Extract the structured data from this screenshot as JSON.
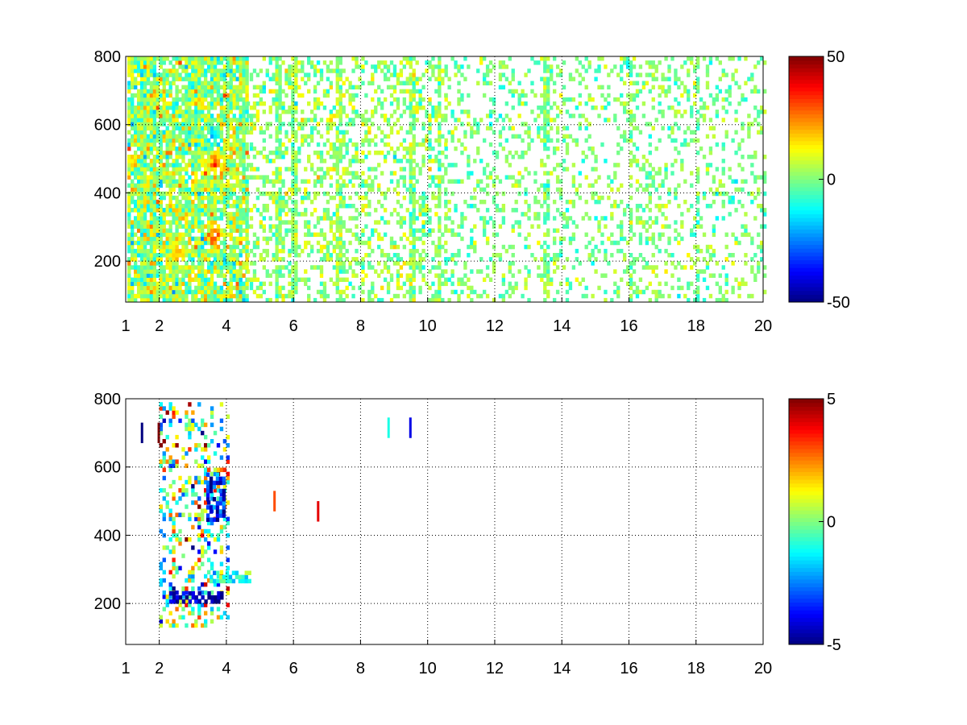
{
  "chart_data": [
    {
      "type": "heatmap",
      "title": "",
      "xlabel": "",
      "ylabel": "",
      "xlim": [
        1,
        20
      ],
      "ylim": [
        80,
        800
      ],
      "grid": true,
      "grid_style": "dotted",
      "x_ticks": [
        1,
        2,
        4,
        6,
        8,
        10,
        12,
        14,
        16,
        18,
        20
      ],
      "x_tick_labels": [
        "1",
        "2",
        "4",
        "6",
        "8",
        "10",
        "12",
        "14",
        "16",
        "18",
        "20"
      ],
      "y_ticks": [
        200,
        400,
        600,
        800
      ],
      "y_tick_labels": [
        "200",
        "400",
        "600",
        "800"
      ],
      "colormap": "jet",
      "clim": [
        -50,
        50
      ],
      "colorbar_ticks": [
        50,
        0,
        -50
      ],
      "colorbar_tick_labels": [
        "50",
        "0",
        "-50"
      ],
      "description_of_values": "sparse scattered values mostly near 0 (green/yellow/cyan); dense activity for x between 1 and 4.5; hot spots near (3.6,270), (3.6,480), (2.5,220); near-vertical streaks at x≈1.5, 5.5, 6, 7.3, 9.5, 10.3, 13.5, 16, 18",
      "clusters": [
        {
          "x": [
            1.05,
            4.6
          ],
          "y": [
            80,
            800
          ],
          "density": 0.85,
          "mean": 3,
          "spread": 14
        },
        {
          "x": [
            4.6,
            10.5
          ],
          "y": [
            80,
            800
          ],
          "density": 0.35,
          "mean": 2,
          "spread": 9
        },
        {
          "x": [
            10.5,
            20
          ],
          "y": [
            80,
            800
          ],
          "density": 0.22,
          "mean": 0,
          "spread": 8
        }
      ],
      "hotspots": [
        {
          "x": 3.6,
          "y": 270,
          "value": 32
        },
        {
          "x": 3.6,
          "y": 480,
          "value": 30
        },
        {
          "x": 2.5,
          "y": 220,
          "value": 22
        },
        {
          "x": 3.5,
          "y": 560,
          "value": -20
        }
      ],
      "streaks": [
        1.5,
        5.5,
        6.0,
        7.3,
        9.5,
        10.3,
        13.5,
        16.0,
        18.0
      ]
    },
    {
      "type": "heatmap",
      "title": "",
      "xlabel": "",
      "ylabel": "",
      "xlim": [
        1,
        20
      ],
      "ylim": [
        80,
        800
      ],
      "grid": true,
      "grid_style": "dotted",
      "x_ticks": [
        1,
        2,
        4,
        6,
        8,
        10,
        12,
        14,
        16,
        18,
        20
      ],
      "x_tick_labels": [
        "1",
        "2",
        "4",
        "6",
        "8",
        "10",
        "12",
        "14",
        "16",
        "18",
        "20"
      ],
      "y_ticks": [
        200,
        400,
        600,
        800
      ],
      "y_tick_labels": [
        "200",
        "400",
        "600",
        "800"
      ],
      "colormap": "jet",
      "clim": [
        -5,
        5
      ],
      "colorbar_ticks": [
        5,
        0,
        -5
      ],
      "colorbar_tick_labels": [
        "5",
        "0",
        "-5"
      ],
      "description_of_values": "very sparse; almost all non-empty cells lie between x=1.5 and x=4.7; strong negative (blue) band near y=210-230 and y=480-560 at x≈3.5-3.9; few isolated points at x≈5.4, 6.7, 9.5",
      "clusters": [
        {
          "x": [
            2.0,
            4.0
          ],
          "y": [
            130,
            780
          ],
          "density": 0.3,
          "mean": 0,
          "spread": 3
        },
        {
          "x": [
            2.2,
            3.9
          ],
          "y": [
            200,
            235
          ],
          "density": 0.7,
          "mean": -4.5,
          "spread": 1
        },
        {
          "x": [
            3.4,
            3.95
          ],
          "y": [
            440,
            580
          ],
          "density": 0.6,
          "mean": -3.5,
          "spread": 1.5
        },
        {
          "x": [
            3.5,
            4.7
          ],
          "y": [
            260,
            290
          ],
          "density": 0.6,
          "mean": -1,
          "spread": 1
        }
      ],
      "isolated_points": [
        {
          "x": 1.45,
          "y": 700,
          "value": -5
        },
        {
          "x": 1.95,
          "y": 700,
          "value": 5
        },
        {
          "x": 5.4,
          "y": 500,
          "value": 3
        },
        {
          "x": 6.7,
          "y": 470,
          "value": 4
        },
        {
          "x": 9.45,
          "y": 715,
          "value": -4
        },
        {
          "x": 8.8,
          "y": 715,
          "value": -1
        }
      ]
    }
  ]
}
